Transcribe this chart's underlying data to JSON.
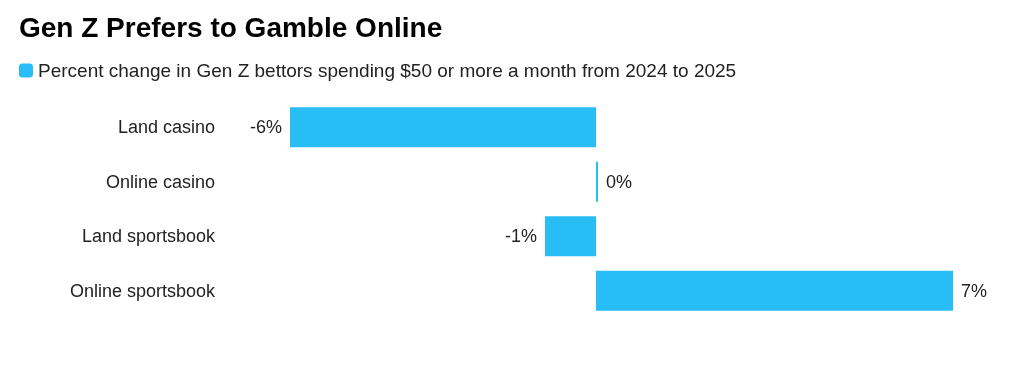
{
  "chart_data": {
    "type": "bar",
    "orientation": "horizontal",
    "title": "Gen Z Prefers to Gamble Online",
    "categories": [
      "Land casino",
      "Online casino",
      "Land sportsbook",
      "Online sportsbook"
    ],
    "series": [
      {
        "name": "Percent change in Gen Z bettors spending $50 or more a month from 2024 to 2025",
        "color": "#29bdf6",
        "values": [
          -6,
          0,
          -1,
          7
        ],
        "value_labels": [
          "-6%",
          "0%",
          "-1%",
          "7%"
        ]
      }
    ],
    "legend": "top left"
  }
}
